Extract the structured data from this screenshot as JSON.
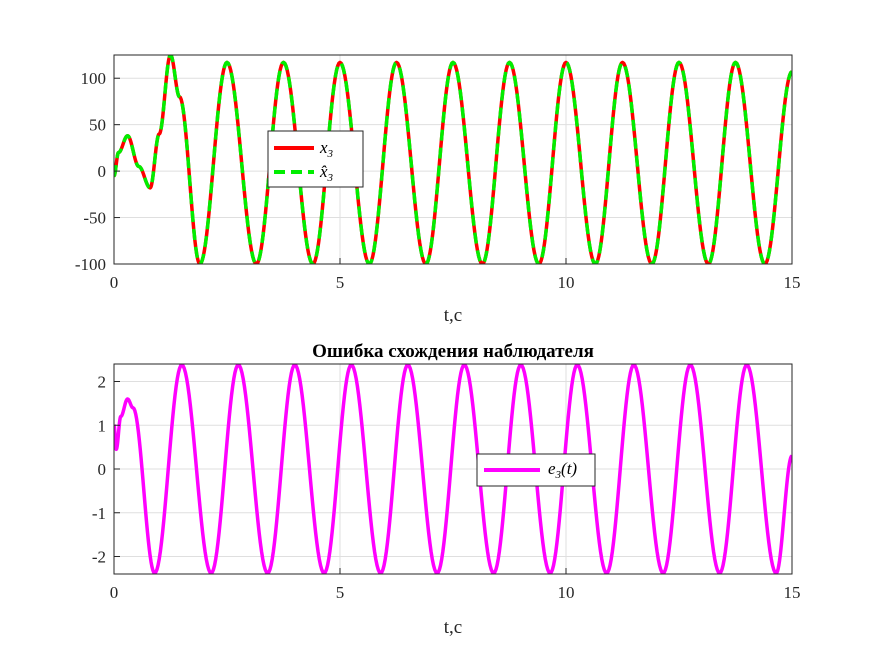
{
  "chart_data": [
    {
      "type": "line",
      "title": "",
      "xlabel": "t,c",
      "ylabel": "",
      "xlim": [
        0,
        15
      ],
      "ylim": [
        -100,
        125
      ],
      "xticks": [
        "0",
        "5",
        "10",
        "15"
      ],
      "yticks": [
        "-100",
        "-50",
        "0",
        "50",
        "100"
      ],
      "grid": true,
      "legend_position": "center-left",
      "series": [
        {
          "name": "x3",
          "color": "#ff0000",
          "style": "solid",
          "description": "sinusoid after transient, amplitude ~117, period ~1.25",
          "x": [
            0,
            0.1,
            0.3,
            0.55,
            0.8,
            1.0,
            1.25,
            1.45,
            1.9,
            2.5,
            3.15,
            3.75,
            4.4,
            5.0,
            5.65,
            6.25,
            6.9,
            7.5,
            8.15,
            8.75,
            9.4,
            10.0,
            10.65,
            11.25,
            11.9,
            12.5,
            13.15,
            13.75,
            14.4,
            15.0
          ],
          "y": [
            -5,
            20,
            38,
            5,
            -18,
            40,
            125,
            80,
            -100,
            117,
            -100,
            117,
            -100,
            117,
            -100,
            117,
            -100,
            117,
            -100,
            117,
            -100,
            117,
            -100,
            117,
            -100,
            117,
            -100,
            117,
            -100,
            107
          ]
        },
        {
          "name": "x̂3",
          "color": "#00ee00",
          "style": "dashed",
          "description": "estimate overlaying x3"
        }
      ]
    },
    {
      "type": "line",
      "title": "Ошибка схождения наблюдателя",
      "xlabel": "t,c",
      "ylabel": "",
      "xlim": [
        0,
        15
      ],
      "ylim": [
        -2.4,
        2.4
      ],
      "xticks": [
        "0",
        "5",
        "10",
        "15"
      ],
      "yticks": [
        "-2",
        "-1",
        "0",
        "1",
        "2"
      ],
      "grid": true,
      "legend_position": "center-right",
      "series": [
        {
          "name": "e3(t)",
          "color": "#ff00ff",
          "style": "solid",
          "description": "sinusoidal error, amplitude ~2.38, period ~1.25",
          "x": [
            0,
            0.05,
            0.15,
            0.3,
            0.42,
            0.9,
            1.5,
            2.15,
            2.75,
            3.4,
            4.0,
            4.65,
            5.25,
            5.9,
            6.5,
            7.15,
            7.75,
            8.4,
            9.0,
            9.65,
            10.25,
            10.9,
            11.5,
            12.15,
            12.75,
            13.4,
            14.0,
            14.65,
            15.0
          ],
          "y": [
            1.0,
            0.45,
            1.2,
            1.6,
            1.4,
            -2.38,
            2.38,
            -2.38,
            2.38,
            -2.38,
            2.38,
            -2.38,
            2.38,
            -2.38,
            2.38,
            -2.38,
            2.38,
            -2.38,
            2.38,
            -2.38,
            2.38,
            -2.38,
            2.38,
            -2.38,
            2.38,
            -2.38,
            2.38,
            -2.38,
            0.3
          ]
        }
      ]
    }
  ],
  "legend1": {
    "label1_base": "x",
    "label1_sub": "3",
    "label2_base": "x̂",
    "label2_sub": "3"
  },
  "legend2": {
    "label_base": "e",
    "label_sub": "3",
    "label_arg": "(t)"
  }
}
